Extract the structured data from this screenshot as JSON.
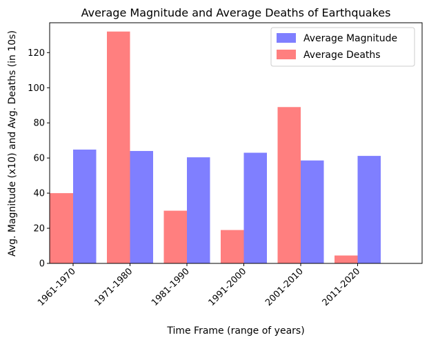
{
  "chart_data": {
    "type": "bar",
    "title": "Average Magnitude and Average Deaths of Earthquakes",
    "xlabel": "Time Frame (range of years)",
    "ylabel": "Avg. Magnitude (x10) and Avg. Deaths (in 10s)",
    "categories": [
      "1961-1970",
      "1971-1980",
      "1981-1990",
      "1991-2000",
      "2001-2010",
      "2011-2020"
    ],
    "series": [
      {
        "name": "Average Magnitude",
        "color": "#7f7fff",
        "values": [
          64.8,
          64.0,
          60.4,
          63.0,
          58.6,
          61.2
        ]
      },
      {
        "name": "Average Deaths",
        "color": "#ff7f7f",
        "values": [
          40.0,
          132.0,
          30.0,
          19.0,
          89.0,
          4.5
        ]
      }
    ],
    "ylim": [
      0,
      137
    ],
    "yticks": [
      0,
      20,
      40,
      60,
      80,
      100,
      120
    ],
    "grid": false,
    "legend_position": "top-right"
  }
}
